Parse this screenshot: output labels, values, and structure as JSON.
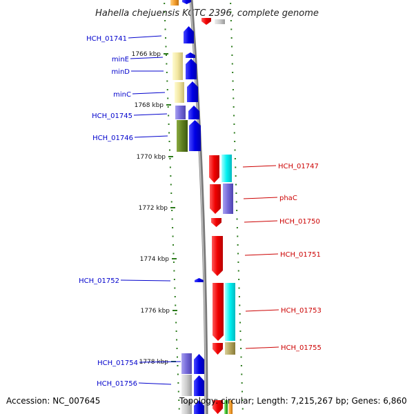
{
  "title": "Hahella chejuensis KCTC 2396, complete genome",
  "accession_text": "Accession: NC_007645",
  "topology_text": "Topology: circular; Length: 7,215,267 bp; Genes: 6,860",
  "colors": {
    "minus_strand_label": "#0000cc",
    "plus_strand_label": "#cc0000",
    "tick": "#2a7a1a",
    "backbone": "#888888"
  },
  "kbp_labels": [
    "1766 kbp",
    "1768 kbp",
    "1770 kbp",
    "1772 kbp",
    "1774 kbp",
    "1776 kbp",
    "1778 kbp"
  ],
  "left_gene_labels": [
    "HCH_01741",
    "minE",
    "minD",
    "minC",
    "HCH_01745",
    "HCH_01746",
    "HCH_01752",
    "HCH_01754",
    "HCH_01756"
  ],
  "right_gene_labels": [
    "HCH_01747",
    "phaC",
    "HCH_01750",
    "HCH_01751",
    "HCH_01753",
    "HCH_01755"
  ]
}
